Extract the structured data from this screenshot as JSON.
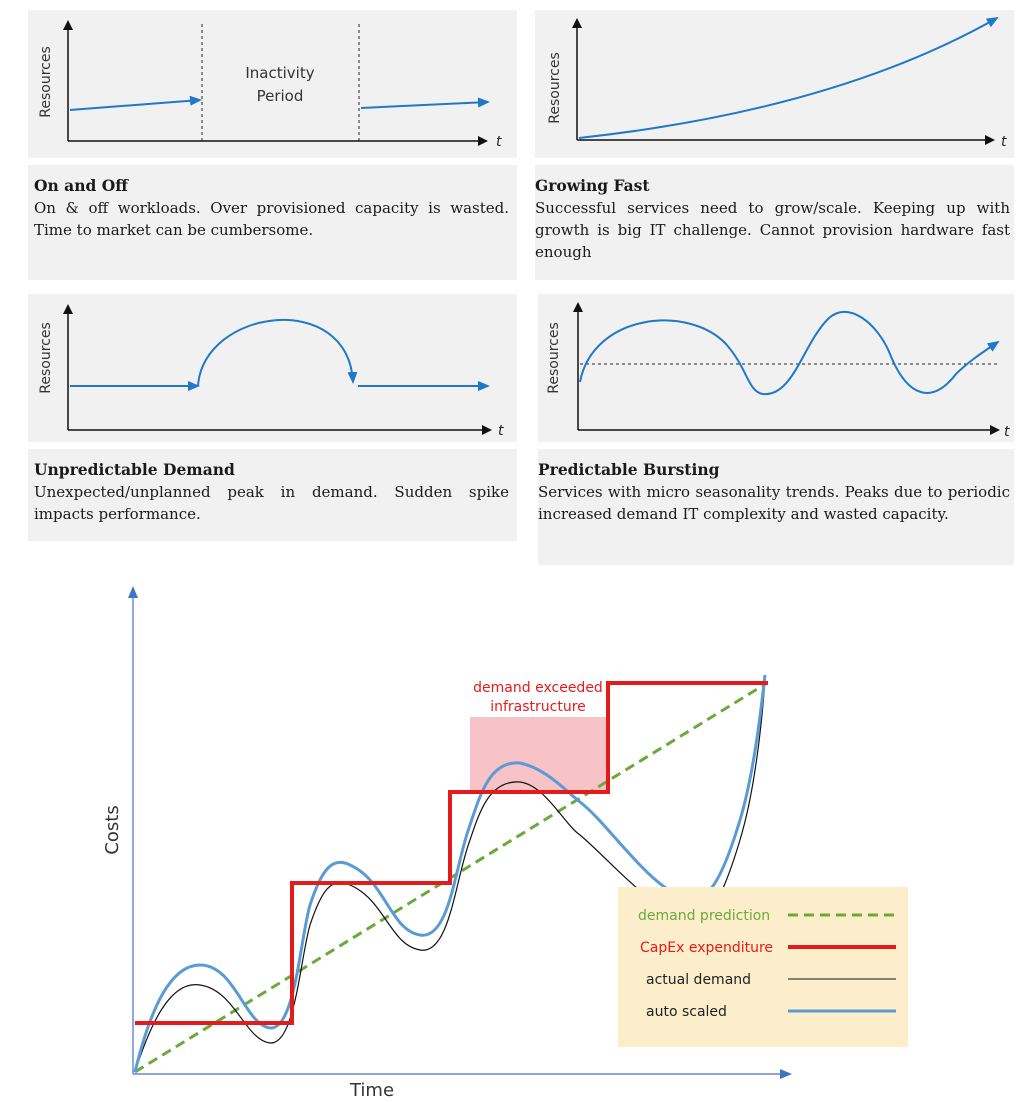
{
  "colors": {
    "arrow_blue": "#1f78c8",
    "axis": "#111111",
    "panel_bg": "#f1f1f2",
    "capex_red": "#e41b1b",
    "prediction_green": "#6aaa3a",
    "auto_blue": "#5b9bd5",
    "highlight": "#f6b9bd",
    "legend_bg": "#fdeecb"
  },
  "panels": [
    {
      "id": "on-off",
      "axis_label": "Resources",
      "t_label": "t",
      "inset_text": [
        "Inactivity",
        "Period"
      ],
      "title": "On and Off",
      "description": "On & off workloads. Over provisioned capacity is wasted. Time to market can be cumbersome."
    },
    {
      "id": "growing",
      "axis_label": "Resources",
      "t_label": "t",
      "title": "Growing Fast",
      "description": "Successful services need to grow/scale. Keeping up with growth is big IT challenge. Cannot provision hardware fast enough"
    },
    {
      "id": "unpredictable",
      "axis_label": "Resources",
      "t_label": "t",
      "title": "Unpredictable Demand",
      "description": "Unexpected/unplanned peak in demand. Sudden spike impacts performance."
    },
    {
      "id": "bursting",
      "axis_label": "Resources",
      "t_label": "t",
      "title": "Predictable Bursting",
      "description": "Services with micro seasonality trends. Peaks due to periodic increased demand IT complexity and wasted capacity."
    }
  ],
  "cost_chart": {
    "ylabel": "Costs",
    "xlabel": "Time",
    "annotation": [
      "demand exceeded",
      "infrastructure"
    ],
    "legend": [
      {
        "label": "demand prediction",
        "style": "dashed-green"
      },
      {
        "label": "CapEx expenditure",
        "style": "thick-red"
      },
      {
        "label": "actual demand",
        "style": "thin-black"
      },
      {
        "label": "auto scaled",
        "style": "blue"
      }
    ]
  }
}
